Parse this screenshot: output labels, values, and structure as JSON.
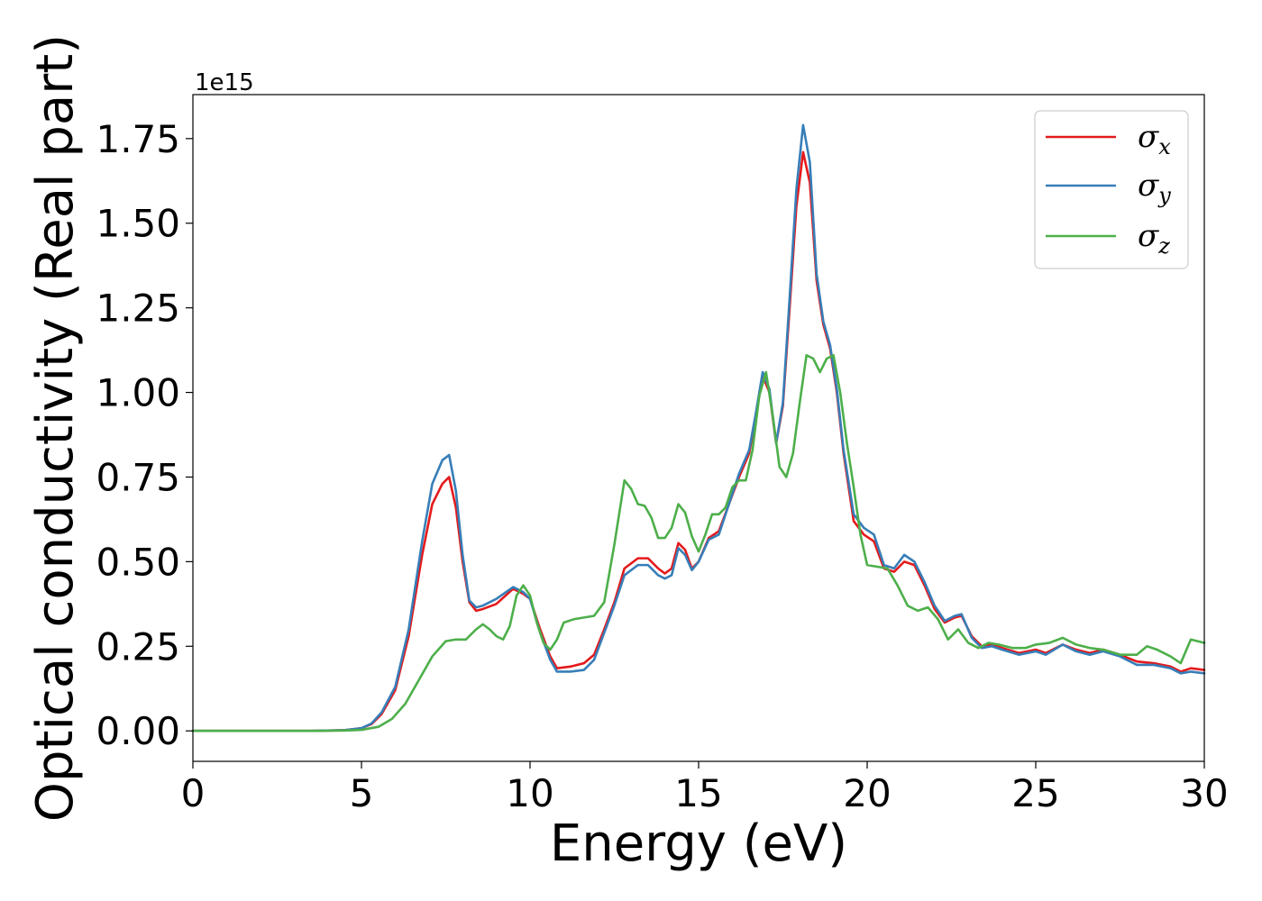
{
  "chart_data": {
    "type": "line",
    "xlabel": "Energy (eV)",
    "ylabel": "Optical conductivity (Real part)",
    "y_offset_label": "1e15",
    "y_scale_factor": 1000000000000000.0,
    "xlim": [
      0,
      30
    ],
    "ylim": [
      -0.09,
      1.88
    ],
    "x_ticks": [
      0,
      5,
      10,
      15,
      20,
      25,
      30
    ],
    "x_tick_labels": [
      "0",
      "5",
      "10",
      "15",
      "20",
      "25",
      "30"
    ],
    "y_ticks": [
      0.0,
      0.25,
      0.5,
      0.75,
      1.0,
      1.25,
      1.5,
      1.75
    ],
    "y_tick_labels": [
      "0.00",
      "0.25",
      "0.50",
      "0.75",
      "1.00",
      "1.25",
      "1.50",
      "1.75"
    ],
    "grid": false,
    "legend_position": "top-right",
    "series": [
      {
        "name": "σx",
        "symbol": "σ",
        "subscript": "x",
        "color": "#e41a1c",
        "x": [
          0,
          3.5,
          4.5,
          5.0,
          5.3,
          5.6,
          6.0,
          6.4,
          6.8,
          7.1,
          7.4,
          7.6,
          7.8,
          8.0,
          8.2,
          8.4,
          8.6,
          9.0,
          9.5,
          9.8,
          10.0,
          10.3,
          10.6,
          10.8,
          11.2,
          11.6,
          11.9,
          12.2,
          12.5,
          12.8,
          13.2,
          13.5,
          13.8,
          14.0,
          14.2,
          14.4,
          14.6,
          14.8,
          15.0,
          15.3,
          15.6,
          15.9,
          16.2,
          16.5,
          16.7,
          16.9,
          17.1,
          17.3,
          17.5,
          17.7,
          17.9,
          18.1,
          18.3,
          18.5,
          18.7,
          18.9,
          19.1,
          19.3,
          19.6,
          19.9,
          20.2,
          20.5,
          20.8,
          21.1,
          21.4,
          21.7,
          22.0,
          22.3,
          22.6,
          22.8,
          23.1,
          23.4,
          23.7,
          24.0,
          24.5,
          25.0,
          25.3,
          25.8,
          26.2,
          26.6,
          27.0,
          27.5,
          28.0,
          28.5,
          29.0,
          29.3,
          29.6,
          30.0
        ],
        "y": [
          0.0,
          0.0,
          0.002,
          0.008,
          0.02,
          0.05,
          0.12,
          0.28,
          0.52,
          0.67,
          0.73,
          0.75,
          0.66,
          0.5,
          0.38,
          0.355,
          0.36,
          0.375,
          0.42,
          0.405,
          0.39,
          0.3,
          0.22,
          0.185,
          0.19,
          0.2,
          0.225,
          0.3,
          0.38,
          0.48,
          0.51,
          0.51,
          0.48,
          0.465,
          0.48,
          0.555,
          0.535,
          0.48,
          0.5,
          0.57,
          0.59,
          0.67,
          0.75,
          0.82,
          0.93,
          1.05,
          1.0,
          0.85,
          0.96,
          1.25,
          1.55,
          1.71,
          1.62,
          1.33,
          1.2,
          1.13,
          1.0,
          0.82,
          0.62,
          0.58,
          0.56,
          0.48,
          0.47,
          0.5,
          0.49,
          0.43,
          0.36,
          0.32,
          0.335,
          0.34,
          0.28,
          0.25,
          0.255,
          0.245,
          0.23,
          0.24,
          0.23,
          0.255,
          0.24,
          0.23,
          0.24,
          0.225,
          0.205,
          0.2,
          0.19,
          0.175,
          0.185,
          0.18
        ]
      },
      {
        "name": "σy",
        "symbol": "σ",
        "subscript": "y",
        "color": "#377eb8",
        "x": [
          0,
          3.5,
          4.5,
          5.0,
          5.3,
          5.6,
          6.0,
          6.4,
          6.8,
          7.1,
          7.4,
          7.6,
          7.8,
          8.0,
          8.2,
          8.4,
          8.6,
          9.0,
          9.5,
          9.8,
          10.0,
          10.3,
          10.6,
          10.8,
          11.2,
          11.6,
          11.9,
          12.2,
          12.5,
          12.8,
          13.2,
          13.5,
          13.8,
          14.0,
          14.2,
          14.4,
          14.6,
          14.8,
          15.0,
          15.3,
          15.6,
          15.9,
          16.2,
          16.5,
          16.7,
          16.9,
          17.1,
          17.3,
          17.5,
          17.7,
          17.9,
          18.1,
          18.3,
          18.5,
          18.7,
          18.9,
          19.1,
          19.3,
          19.6,
          19.9,
          20.2,
          20.5,
          20.8,
          21.1,
          21.4,
          21.7,
          22.0,
          22.3,
          22.6,
          22.8,
          23.1,
          23.4,
          23.7,
          24.0,
          24.5,
          25.0,
          25.3,
          25.8,
          26.2,
          26.6,
          27.0,
          27.5,
          28.0,
          28.5,
          29.0,
          29.3,
          29.6,
          30.0
        ],
        "y": [
          0.0,
          0.0,
          0.002,
          0.008,
          0.022,
          0.055,
          0.13,
          0.3,
          0.56,
          0.73,
          0.8,
          0.815,
          0.71,
          0.52,
          0.385,
          0.365,
          0.37,
          0.39,
          0.425,
          0.41,
          0.39,
          0.29,
          0.21,
          0.175,
          0.175,
          0.18,
          0.21,
          0.29,
          0.37,
          0.46,
          0.49,
          0.49,
          0.46,
          0.45,
          0.46,
          0.54,
          0.52,
          0.475,
          0.5,
          0.565,
          0.58,
          0.67,
          0.76,
          0.83,
          0.94,
          1.06,
          1.01,
          0.85,
          0.97,
          1.28,
          1.6,
          1.79,
          1.68,
          1.35,
          1.21,
          1.14,
          1.01,
          0.83,
          0.64,
          0.6,
          0.58,
          0.49,
          0.48,
          0.52,
          0.5,
          0.44,
          0.37,
          0.325,
          0.34,
          0.345,
          0.275,
          0.245,
          0.25,
          0.24,
          0.225,
          0.235,
          0.225,
          0.255,
          0.235,
          0.225,
          0.235,
          0.22,
          0.195,
          0.195,
          0.185,
          0.17,
          0.175,
          0.17
        ]
      },
      {
        "name": "σz",
        "symbol": "σ",
        "subscript": "z",
        "color": "#4daf4a",
        "x": [
          0,
          3.5,
          4.5,
          5.0,
          5.5,
          5.9,
          6.3,
          6.7,
          7.1,
          7.5,
          7.8,
          8.1,
          8.4,
          8.6,
          8.8,
          9.0,
          9.2,
          9.4,
          9.6,
          9.8,
          10.0,
          10.2,
          10.4,
          10.6,
          10.8,
          11.0,
          11.3,
          11.6,
          11.9,
          12.2,
          12.5,
          12.8,
          13.0,
          13.2,
          13.4,
          13.6,
          13.8,
          14.0,
          14.2,
          14.4,
          14.6,
          14.8,
          15.0,
          15.2,
          15.4,
          15.6,
          15.8,
          16.0,
          16.2,
          16.4,
          16.6,
          16.8,
          17.0,
          17.2,
          17.4,
          17.6,
          17.8,
          18.0,
          18.2,
          18.4,
          18.6,
          18.8,
          19.0,
          19.2,
          19.4,
          19.6,
          19.8,
          20.0,
          20.3,
          20.6,
          20.9,
          21.2,
          21.5,
          21.8,
          22.1,
          22.4,
          22.7,
          23.0,
          23.3,
          23.6,
          23.9,
          24.3,
          24.7,
          25.0,
          25.4,
          25.8,
          26.2,
          26.6,
          27.0,
          27.5,
          28.0,
          28.3,
          28.6,
          29.0,
          29.3,
          29.6,
          30.0
        ],
        "y": [
          0.0,
          0.0,
          0.001,
          0.003,
          0.012,
          0.035,
          0.08,
          0.15,
          0.22,
          0.265,
          0.27,
          0.27,
          0.3,
          0.315,
          0.3,
          0.28,
          0.27,
          0.31,
          0.4,
          0.43,
          0.4,
          0.32,
          0.26,
          0.24,
          0.27,
          0.32,
          0.33,
          0.335,
          0.34,
          0.38,
          0.55,
          0.74,
          0.715,
          0.67,
          0.665,
          0.63,
          0.57,
          0.57,
          0.6,
          0.67,
          0.645,
          0.575,
          0.53,
          0.58,
          0.64,
          0.64,
          0.66,
          0.72,
          0.74,
          0.74,
          0.83,
          0.99,
          1.06,
          0.93,
          0.78,
          0.75,
          0.82,
          0.97,
          1.11,
          1.1,
          1.06,
          1.1,
          1.11,
          1.0,
          0.85,
          0.72,
          0.58,
          0.49,
          0.485,
          0.48,
          0.43,
          0.37,
          0.355,
          0.365,
          0.33,
          0.27,
          0.3,
          0.26,
          0.245,
          0.26,
          0.255,
          0.245,
          0.245,
          0.255,
          0.26,
          0.275,
          0.255,
          0.245,
          0.24,
          0.225,
          0.225,
          0.25,
          0.24,
          0.22,
          0.2,
          0.27,
          0.26
        ]
      }
    ]
  }
}
